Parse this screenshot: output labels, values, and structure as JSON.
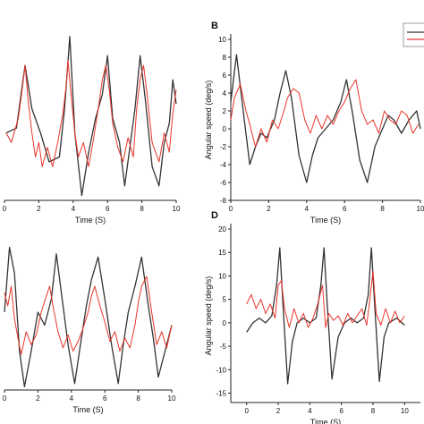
{
  "chart_data": [
    {
      "type": "line",
      "panel": "",
      "xlabel": "Time (S)",
      "ylabel": "",
      "xlim": [
        0,
        10
      ],
      "ylim": [
        -8,
        10
      ],
      "x_ticks": [
        "0",
        "2",
        "4",
        "6",
        "8",
        "10"
      ],
      "y_ticks": [],
      "series": [
        {
          "color": "#333333",
          "x": [
            0.1,
            0.7,
            1.2,
            1.6,
            2.1,
            2.6,
            3.2,
            3.5,
            3.8,
            4.1,
            4.5,
            4.9,
            5.3,
            5.7,
            6.0,
            6.3,
            6.7,
            7.0,
            7.3,
            7.6,
            7.9,
            8.2,
            8.6,
            9.0,
            9.3,
            9.6,
            9.8,
            10.0
          ],
          "y": [
            -1.0,
            -0.5,
            6.0,
            1.5,
            -1.0,
            -4.0,
            -3.5,
            1.5,
            9.0,
            -1.0,
            -7.5,
            -3.0,
            0.5,
            3.0,
            7.0,
            0.5,
            -2.0,
            -6.5,
            -2.5,
            1.5,
            7.0,
            2.5,
            -4.5,
            -6.5,
            -2.0,
            0.0,
            4.5,
            2.0
          ]
        },
        {
          "color": "#e8352b",
          "x": [
            0.1,
            0.4,
            0.8,
            1.0,
            1.2,
            1.4,
            1.6,
            1.8,
            2.0,
            2.2,
            2.5,
            2.8,
            3.1,
            3.4,
            3.6,
            3.7,
            3.9,
            4.1,
            4.3,
            4.6,
            4.9,
            5.2,
            5.5,
            5.7,
            5.9,
            6.1,
            6.3,
            6.6,
            6.9,
            7.2,
            7.5,
            7.7,
            7.9,
            8.1,
            8.3,
            8.6,
            9.0,
            9.3,
            9.6,
            9.8,
            10.0
          ],
          "y": [
            -1.0,
            -2.0,
            0.5,
            3.0,
            6.0,
            2.0,
            -1.0,
            -3.5,
            -2.0,
            -4.5,
            -2.5,
            -4.5,
            -2.0,
            1.0,
            4.0,
            6.5,
            2.5,
            -1.0,
            -3.5,
            -2.0,
            -4.5,
            -1.5,
            2.0,
            4.5,
            6.0,
            3.5,
            0.0,
            -2.5,
            -4.0,
            -1.5,
            -3.5,
            1.5,
            4.5,
            6.0,
            3.0,
            -2.0,
            -4.0,
            -1.0,
            -3.0,
            1.0,
            3.5
          ]
        }
      ]
    },
    {
      "type": "line",
      "panel": "B",
      "xlabel": "Time (S)",
      "ylabel": "Angular speed (deg/s)",
      "xlim": [
        0,
        10
      ],
      "ylim": [
        -8,
        10
      ],
      "x_ticks": [
        "0",
        "2",
        "4",
        "6",
        "8",
        "10"
      ],
      "y_ticks": [
        "-8",
        "-6",
        "-4",
        "-2",
        "0",
        "2",
        "4",
        "6",
        "8",
        "10"
      ],
      "series": [
        {
          "color": "#333333",
          "x": [
            0,
            0.3,
            0.6,
            1.0,
            1.3,
            1.6,
            1.9,
            2.3,
            2.6,
            2.9,
            3.2,
            3.6,
            4.0,
            4.3,
            4.6,
            5.0,
            5.4,
            5.8,
            6.1,
            6.4,
            6.8,
            7.2,
            7.6,
            8.0,
            8.3,
            8.6,
            9.0,
            9.4,
            9.8,
            10.0
          ],
          "y": [
            3.0,
            8.3,
            3.0,
            -4.0,
            -2.0,
            -0.5,
            -1.0,
            1.0,
            4.0,
            6.5,
            3.5,
            -3.0,
            -6.0,
            -3.0,
            -1.0,
            0.0,
            1.0,
            3.0,
            5.5,
            2.0,
            -3.5,
            -6.0,
            -2.0,
            0.0,
            1.5,
            1.0,
            -0.5,
            1.0,
            2.0,
            0.0
          ]
        },
        {
          "color": "#e8352b",
          "x": [
            0,
            0.2,
            0.5,
            0.8,
            1.0,
            1.3,
            1.6,
            1.9,
            2.2,
            2.5,
            2.8,
            3.0,
            3.3,
            3.6,
            3.9,
            4.2,
            4.5,
            4.8,
            5.1,
            5.4,
            5.7,
            6.0,
            6.3,
            6.6,
            6.9,
            7.2,
            7.5,
            7.8,
            8.1,
            8.4,
            8.7,
            9.0,
            9.3,
            9.6,
            9.9
          ],
          "y": [
            1.0,
            3.5,
            5.0,
            2.0,
            0.5,
            -2.0,
            0.0,
            -1.5,
            1.0,
            0.0,
            2.0,
            3.5,
            4.5,
            4.0,
            1.0,
            -0.5,
            1.5,
            0.0,
            1.5,
            0.5,
            2.0,
            3.0,
            4.5,
            5.5,
            2.0,
            0.5,
            1.0,
            -0.5,
            2.0,
            1.0,
            0.5,
            2.0,
            1.5,
            -0.5,
            0.5
          ]
        }
      ]
    },
    {
      "type": "line",
      "panel": "",
      "xlabel": "Time (S)",
      "ylabel": "",
      "xlim": [
        0,
        10
      ],
      "ylim": [
        -10,
        14
      ],
      "x_ticks": [
        "0",
        "2",
        "4",
        "6",
        "8",
        "10"
      ],
      "y_ticks": [],
      "series": [
        {
          "color": "#333333",
          "x": [
            0,
            0.3,
            0.6,
            0.9,
            1.2,
            1.6,
            2.0,
            2.4,
            2.8,
            3.1,
            3.4,
            3.8,
            4.2,
            4.6,
            4.9,
            5.2,
            5.6,
            6.0,
            6.4,
            6.8,
            7.1,
            7.4,
            7.8,
            8.2,
            8.6,
            8.9,
            9.2,
            9.6,
            10.0
          ],
          "y": [
            2.0,
            12.0,
            8.0,
            -4.0,
            -9.5,
            -4.0,
            2.0,
            0.0,
            4.0,
            11.0,
            5.0,
            -3.0,
            -9.0,
            -2.0,
            3.0,
            7.0,
            10.5,
            4.0,
            -3.0,
            -9.0,
            -3.0,
            2.0,
            6.0,
            10.5,
            3.0,
            -2.0,
            -8.0,
            -4.0,
            0.0
          ]
        },
        {
          "color": "#e8352b",
          "x": [
            0,
            0.2,
            0.4,
            0.6,
            0.8,
            1.0,
            1.3,
            1.6,
            1.9,
            2.2,
            2.5,
            2.7,
            2.9,
            3.2,
            3.5,
            3.8,
            4.1,
            4.4,
            4.7,
            5.0,
            5.2,
            5.4,
            5.7,
            6.0,
            6.3,
            6.6,
            6.9,
            7.2,
            7.5,
            7.8,
            8.0,
            8.2,
            8.5,
            8.8,
            9.1,
            9.4,
            9.7,
            10.0
          ],
          "y": [
            5.0,
            3.0,
            6.0,
            1.0,
            -2.0,
            -4.5,
            -1.0,
            -3.0,
            -1.5,
            2.0,
            4.5,
            6.0,
            3.0,
            -1.0,
            -3.5,
            -1.5,
            -4.0,
            -2.5,
            -0.5,
            2.0,
            4.5,
            6.0,
            3.0,
            0.5,
            -2.5,
            -1.0,
            -4.0,
            -2.0,
            -3.5,
            0.0,
            3.5,
            6.0,
            7.5,
            2.0,
            -3.0,
            -1.0,
            -3.5,
            0.0
          ]
        }
      ]
    },
    {
      "type": "line",
      "panel": "D",
      "xlabel": "Time (S)",
      "ylabel": "Angular speed (deg/s)",
      "xlim": [
        -1,
        11
      ],
      "ylim": [
        -17,
        20
      ],
      "x_ticks": [
        "0",
        "2",
        "4",
        "6",
        "8",
        "10"
      ],
      "y_ticks": [
        "-15",
        "-10",
        "-5",
        "0",
        "5",
        "10",
        "15",
        "20"
      ],
      "series": [
        {
          "color": "#333333",
          "x": [
            0,
            0.4,
            0.8,
            1.2,
            1.6,
            1.9,
            2.1,
            2.3,
            2.6,
            2.9,
            3.2,
            3.6,
            4.0,
            4.4,
            4.7,
            4.9,
            5.1,
            5.4,
            5.8,
            6.2,
            6.6,
            7.0,
            7.4,
            7.7,
            7.9,
            8.1,
            8.4,
            8.7,
            9.0,
            9.5,
            10.0
          ],
          "y": [
            -2.0,
            0.0,
            1.0,
            0.0,
            1.5,
            8.0,
            16.0,
            4.0,
            -13.0,
            -4.0,
            0.0,
            1.0,
            0.0,
            1.0,
            8.0,
            16.0,
            4.0,
            -12.0,
            -3.0,
            0.0,
            1.0,
            0.0,
            1.0,
            6.0,
            16.0,
            4.0,
            -12.5,
            -3.0,
            0.0,
            1.0,
            -0.5
          ]
        },
        {
          "color": "#e8352b",
          "x": [
            0,
            0.3,
            0.6,
            0.9,
            1.2,
            1.5,
            1.8,
            2.0,
            2.2,
            2.4,
            2.7,
            3.0,
            3.3,
            3.6,
            3.9,
            4.2,
            4.5,
            4.8,
            5.0,
            5.2,
            5.5,
            5.8,
            6.1,
            6.4,
            6.7,
            7.0,
            7.3,
            7.6,
            7.8,
            8.0,
            8.2,
            8.5,
            8.8,
            9.1,
            9.4,
            9.7,
            10.0
          ],
          "y": [
            4.0,
            6.0,
            3.0,
            5.0,
            2.0,
            4.0,
            1.0,
            8.0,
            9.0,
            3.0,
            -1.0,
            3.0,
            0.0,
            2.0,
            -1.0,
            1.0,
            4.0,
            8.0,
            -1.0,
            2.0,
            0.5,
            1.5,
            -0.5,
            2.0,
            0.0,
            1.5,
            3.0,
            -0.5,
            5.0,
            11.0,
            2.0,
            -0.5,
            3.0,
            0.0,
            2.5,
            0.0,
            1.5
          ]
        }
      ]
    }
  ]
}
